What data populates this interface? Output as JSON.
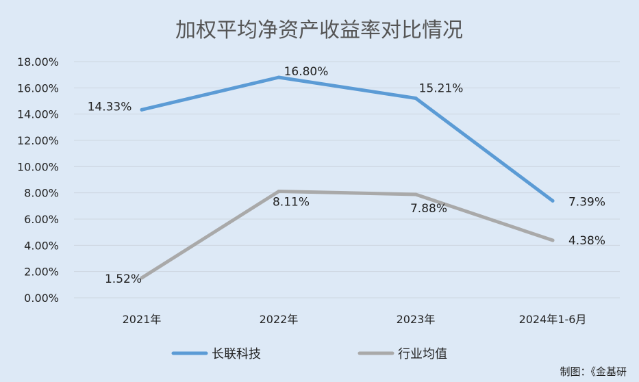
{
  "chart_data": {
    "type": "line",
    "title": "加权平均净资产收益率对比情况",
    "categories": [
      "2021年",
      "2022年",
      "2023年",
      "2024年1-6月"
    ],
    "y_ticks": [
      "0.00%",
      "2.00%",
      "4.00%",
      "6.00%",
      "8.00%",
      "10.00%",
      "12.00%",
      "14.00%",
      "16.00%",
      "18.00%"
    ],
    "ylim": [
      0,
      18
    ],
    "grid": true,
    "legend_position": "bottom",
    "series": [
      {
        "name": "长联科技",
        "color": "#5b9bd5",
        "values": [
          14.33,
          16.8,
          15.21,
          7.39
        ],
        "labels": [
          "14.33%",
          "16.80%",
          "15.21%",
          "7.39%"
        ]
      },
      {
        "name": "行业均值",
        "color": "#a9a9a9",
        "values": [
          1.52,
          8.11,
          7.88,
          4.38
        ],
        "labels": [
          "1.52%",
          "8.11%",
          "7.88%",
          "4.38%"
        ]
      }
    ],
    "credit": "制图：《金基研"
  }
}
